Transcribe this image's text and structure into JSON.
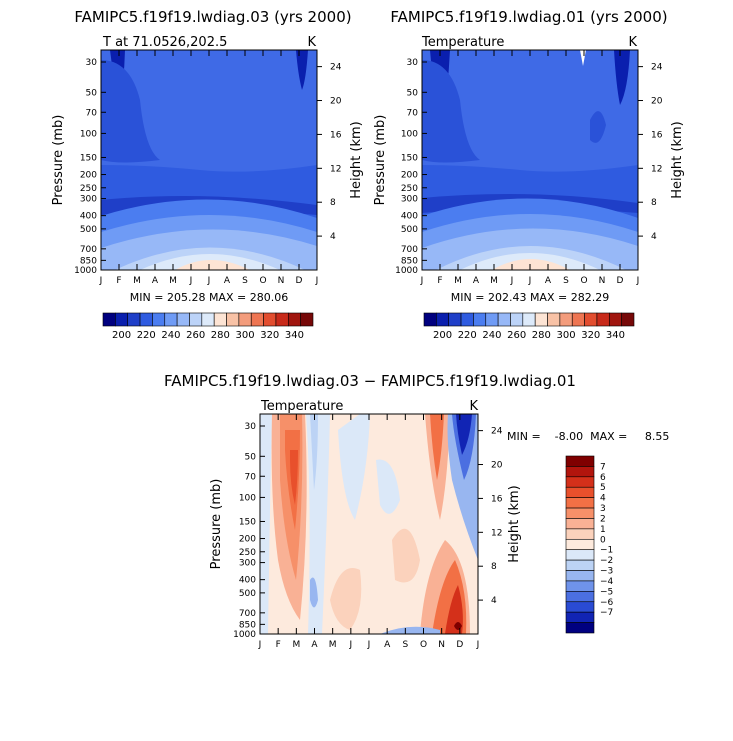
{
  "chart_data": [
    {
      "type": "heatmap",
      "title": "FAMIPC5.f19f19.lwdiag.03 (yrs 2000)",
      "left_subtitle": "T at 71.0526,202.5",
      "right_subtitle": "K",
      "xlabel": "",
      "ylabel": "Pressure (mb)",
      "y2label": "Height (km)",
      "x_ticks": [
        "J",
        "F",
        "M",
        "A",
        "M",
        "J",
        "J",
        "A",
        "S",
        "O",
        "N",
        "D",
        "J"
      ],
      "y_ticks": [
        "30",
        "50",
        "70",
        "100",
        "150",
        "200",
        "250",
        "300",
        "400",
        "500",
        "700",
        "850",
        "1000"
      ],
      "y_tick_values": [
        30,
        50,
        70,
        100,
        150,
        200,
        250,
        300,
        400,
        500,
        700,
        850,
        1000
      ],
      "y2_ticks": [
        "4",
        "8",
        "12",
        "16",
        "20",
        "24"
      ],
      "stats_text": "MIN = 205.28   MAX = 280.06",
      "min": 205.28,
      "max": 280.06,
      "colorbar": {
        "labels": [
          "200",
          "220",
          "240",
          "260",
          "280",
          "300",
          "320",
          "340"
        ],
        "levels": [
          190,
          200,
          210,
          220,
          230,
          240,
          250,
          260,
          270,
          280,
          290,
          300,
          310,
          320,
          330,
          340,
          350
        ],
        "colors": [
          "#00007f",
          "#0a1fae",
          "#1f3fc8",
          "#2f5be0",
          "#4b7df0",
          "#6f9bf5",
          "#97b8f7",
          "#bcd3f8",
          "#ddeafa",
          "#fde4d4",
          "#f8c2a6",
          "#f39c7c",
          "#ee7552",
          "#e24d2f",
          "#c82a1a",
          "#a0150e",
          "#760808"
        ]
      },
      "fields_desc": "Monthly temperature profile; coldest ~205K near 30-70mb in Jan/Feb and Nov/Dec, warmest ~280K near surface in Jul"
    },
    {
      "type": "heatmap",
      "title": "FAMIPC5.f19f19.lwdiag.01 (yrs 2000)",
      "left_subtitle": "Temperature",
      "right_subtitle": "K",
      "ylabel": "Pressure (mb)",
      "y2label": "Height (km)",
      "x_ticks": [
        "J",
        "F",
        "M",
        "A",
        "M",
        "J",
        "J",
        "A",
        "S",
        "O",
        "N",
        "D",
        "J"
      ],
      "y_ticks": [
        "30",
        "50",
        "70",
        "100",
        "150",
        "200",
        "250",
        "300",
        "400",
        "500",
        "700",
        "850",
        "1000"
      ],
      "y2_ticks": [
        "4",
        "8",
        "12",
        "16",
        "20",
        "24"
      ],
      "stats_text": "MIN = 202.43   MAX = 282.29",
      "min": 202.43,
      "max": 282.29,
      "colorbar": {
        "labels": [
          "200",
          "220",
          "240",
          "260",
          "280",
          "300",
          "320",
          "340"
        ]
      }
    },
    {
      "type": "heatmap",
      "title": "FAMIPC5.f19f19.lwdiag.03 − FAMIPC5.f19f19.lwdiag.01",
      "left_subtitle": "Temperature",
      "right_subtitle": "K",
      "ylabel": "Pressure (mb)",
      "y2label": "Height (km)",
      "x_ticks": [
        "J",
        "F",
        "M",
        "A",
        "M",
        "J",
        "J",
        "A",
        "S",
        "O",
        "N",
        "D",
        "J"
      ],
      "y_ticks": [
        "30",
        "50",
        "70",
        "100",
        "150",
        "200",
        "250",
        "300",
        "400",
        "500",
        "700",
        "850",
        "1000"
      ],
      "y2_ticks": [
        "4",
        "8",
        "12",
        "16",
        "20",
        "24"
      ],
      "stats_text": "MIN =    -8.00  MAX =     8.55",
      "min": -8.0,
      "max": 8.55,
      "colorbar": {
        "labels": [
          "7",
          "6",
          "5",
          "4",
          "3",
          "2",
          "1",
          "0",
          "−1",
          "−2",
          "−3",
          "−4",
          "−5",
          "−6",
          "−7"
        ],
        "colors": [
          "#7f0000",
          "#b2150d",
          "#d4301a",
          "#e8502c",
          "#f27045",
          "#f69069",
          "#f9b195",
          "#fbd2bc",
          "#fdeadd",
          "#dbe8f8",
          "#bcd3f5",
          "#98b6f0",
          "#6f93ea",
          "#4b6fe1",
          "#2a4bd3",
          "#1124b4",
          "#000080"
        ]
      }
    }
  ]
}
